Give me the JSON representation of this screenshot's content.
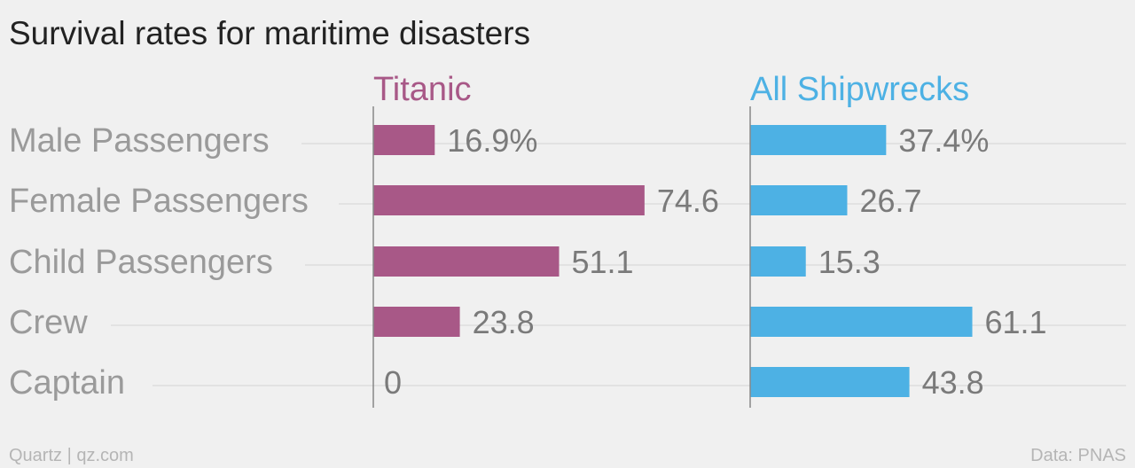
{
  "chart_data": {
    "type": "bar",
    "orientation": "horizontal",
    "title": "Survival rates for maritime disasters",
    "categories": [
      "Male Passengers",
      "Female Passengers",
      "Child Passengers",
      "Crew",
      "Captain"
    ],
    "series": [
      {
        "name": "Titanic",
        "color": "#a85887",
        "values": [
          16.9,
          74.6,
          51.1,
          23.8,
          0
        ],
        "labels": [
          "16.9%",
          "74.6",
          "51.1",
          "23.8",
          "0"
        ]
      },
      {
        "name": "All Shipwrecks",
        "color": "#4db1e4",
        "values": [
          37.4,
          26.7,
          15.3,
          61.1,
          43.8
        ],
        "labels": [
          "37.4%",
          "26.7",
          "15.3",
          "61.1",
          "43.8"
        ]
      }
    ],
    "layout": "small-multiples",
    "grid": true
  },
  "footer": {
    "source_left": "Quartz | qz.com",
    "source_right": "Data: PNAS"
  }
}
